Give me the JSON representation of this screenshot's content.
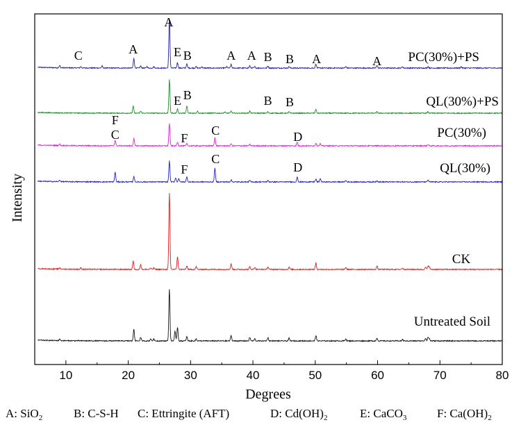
{
  "chart_data": {
    "type": "line",
    "title": "",
    "xlabel": "Degrees",
    "ylabel": "Intensity",
    "xlim": [
      5,
      80
    ],
    "x_ticks": [
      10,
      20,
      30,
      40,
      50,
      60,
      70,
      80
    ],
    "grid": false,
    "series": [
      {
        "name": "PC(30%)+PS",
        "color": "#1f1fa8",
        "peaks": [
          [
            9.0,
            3
          ],
          [
            12.4,
            2
          ],
          [
            15.8,
            3
          ],
          [
            20.9,
            14
          ],
          [
            22.0,
            3
          ],
          [
            23.0,
            2
          ],
          [
            24.1,
            2
          ],
          [
            26.6,
            70
          ],
          [
            27.9,
            8
          ],
          [
            29.4,
            6
          ],
          [
            30.9,
            2
          ],
          [
            31.8,
            2
          ],
          [
            35.8,
            2
          ],
          [
            36.5,
            5
          ],
          [
            39.5,
            3
          ],
          [
            40.3,
            2
          ],
          [
            42.4,
            3
          ],
          [
            45.8,
            2
          ],
          [
            50.1,
            6
          ],
          [
            54.9,
            2
          ],
          [
            59.9,
            4
          ],
          [
            64.0,
            2
          ],
          [
            68.1,
            2
          ],
          [
            73.4,
            2
          ]
        ],
        "labels": [
          {
            "text": "C",
            "x": 12.0
          },
          {
            "text": "A",
            "x": 20.8
          },
          {
            "text": "A",
            "x": 26.5
          },
          {
            "text": "E",
            "x": 27.9
          },
          {
            "text": "B",
            "x": 29.5
          },
          {
            "text": "A",
            "x": 36.5
          },
          {
            "text": "A",
            "x": 39.8
          },
          {
            "text": "B",
            "x": 42.4
          },
          {
            "text": "B",
            "x": 45.9
          },
          {
            "text": "A",
            "x": 50.2
          },
          {
            "text": "A",
            "x": 59.9
          }
        ]
      },
      {
        "name": "QL(30%)+PS",
        "color": "#1f8f2f",
        "peaks": [
          [
            20.8,
            10
          ],
          [
            22.0,
            3
          ],
          [
            26.6,
            48
          ],
          [
            27.9,
            6
          ],
          [
            29.4,
            10
          ],
          [
            31.1,
            3
          ],
          [
            35.5,
            2
          ],
          [
            36.5,
            3
          ],
          [
            39.5,
            3
          ],
          [
            42.4,
            2
          ],
          [
            45.8,
            2
          ],
          [
            50.1,
            6
          ],
          [
            59.9,
            2
          ],
          [
            68.1,
            2
          ]
        ],
        "labels": [
          {
            "text": "E",
            "x": 27.9
          },
          {
            "text": "B",
            "x": 29.5
          },
          {
            "text": "B",
            "x": 42.4
          },
          {
            "text": "B",
            "x": 45.9
          }
        ]
      },
      {
        "name": "PC(30%)",
        "color": "#e020e0",
        "peaks": [
          [
            9.0,
            2
          ],
          [
            17.9,
            8
          ],
          [
            20.9,
            10
          ],
          [
            26.6,
            32
          ],
          [
            27.9,
            5
          ],
          [
            29.4,
            3
          ],
          [
            33.9,
            12
          ],
          [
            36.5,
            3
          ],
          [
            39.5,
            2
          ],
          [
            47.1,
            5
          ],
          [
            50.1,
            4
          ],
          [
            50.8,
            3
          ],
          [
            68.1,
            2
          ]
        ],
        "labels": [
          {
            "text": "F",
            "x": 17.9
          },
          {
            "text": "C",
            "x": 17.9
          },
          {
            "text": "F",
            "x": 29.0
          },
          {
            "text": "C",
            "x": 34.0
          },
          {
            "text": "D",
            "x": 47.2
          }
        ]
      },
      {
        "name": "QL(30%)",
        "color": "#2020d0",
        "peaks": [
          [
            9.0,
            2
          ],
          [
            17.9,
            14
          ],
          [
            20.9,
            8
          ],
          [
            26.6,
            30
          ],
          [
            27.6,
            6
          ],
          [
            28.1,
            5
          ],
          [
            29.4,
            7
          ],
          [
            33.9,
            20
          ],
          [
            36.5,
            3
          ],
          [
            39.5,
            2
          ],
          [
            42.4,
            2
          ],
          [
            47.1,
            7
          ],
          [
            50.1,
            4
          ],
          [
            50.8,
            5
          ],
          [
            54.9,
            2
          ],
          [
            59.9,
            2
          ],
          [
            68.1,
            3
          ]
        ],
        "labels": [
          {
            "text": "F",
            "x": 29.0
          },
          {
            "text": "C",
            "x": 34.0
          },
          {
            "text": "D",
            "x": 47.2
          }
        ]
      },
      {
        "name": "CK",
        "color": "#e41a1a",
        "peaks": [
          [
            9.0,
            2
          ],
          [
            12.4,
            2
          ],
          [
            20.8,
            12
          ],
          [
            22.0,
            7
          ],
          [
            23.6,
            2
          ],
          [
            24.1,
            2
          ],
          [
            26.6,
            110
          ],
          [
            27.9,
            18
          ],
          [
            29.4,
            5
          ],
          [
            30.9,
            4
          ],
          [
            36.5,
            8
          ],
          [
            39.5,
            4
          ],
          [
            40.3,
            3
          ],
          [
            42.4,
            4
          ],
          [
            45.8,
            3
          ],
          [
            50.1,
            9
          ],
          [
            54.9,
            3
          ],
          [
            59.9,
            5
          ],
          [
            64.0,
            2
          ],
          [
            67.7,
            3
          ],
          [
            68.1,
            5
          ],
          [
            68.3,
            3
          ]
        ],
        "labels": []
      },
      {
        "name": "Untreated Soil",
        "color": "#111111",
        "peaks": [
          [
            9.0,
            2
          ],
          [
            20.9,
            17
          ],
          [
            22.0,
            5
          ],
          [
            23.6,
            3
          ],
          [
            24.1,
            3
          ],
          [
            26.6,
            75
          ],
          [
            27.5,
            14
          ],
          [
            27.9,
            20
          ],
          [
            29.4,
            6
          ],
          [
            30.9,
            3
          ],
          [
            36.5,
            8
          ],
          [
            39.5,
            5
          ],
          [
            40.3,
            3
          ],
          [
            42.4,
            5
          ],
          [
            45.8,
            4
          ],
          [
            50.1,
            8
          ],
          [
            54.9,
            3
          ],
          [
            59.9,
            4
          ],
          [
            64.0,
            2
          ],
          [
            67.7,
            4
          ],
          [
            68.1,
            5
          ],
          [
            68.3,
            3
          ]
        ],
        "labels": []
      }
    ],
    "footnote": [
      {
        "code": "A",
        "name": "SiO",
        "sub": "2",
        "tail": ""
      },
      {
        "code": "B",
        "name": "C-S-H",
        "sub": "",
        "tail": ""
      },
      {
        "code": "C",
        "name": "Ettringite (AFT)",
        "sub": "",
        "tail": ""
      },
      {
        "code": "D",
        "name": "Cd(OH)",
        "sub": "2",
        "tail": ""
      },
      {
        "code": "E",
        "name": "CaCO",
        "sub": "3",
        "tail": ""
      },
      {
        "code": "F",
        "name": "Ca(OH)",
        "sub": "2",
        "tail": ""
      }
    ]
  }
}
